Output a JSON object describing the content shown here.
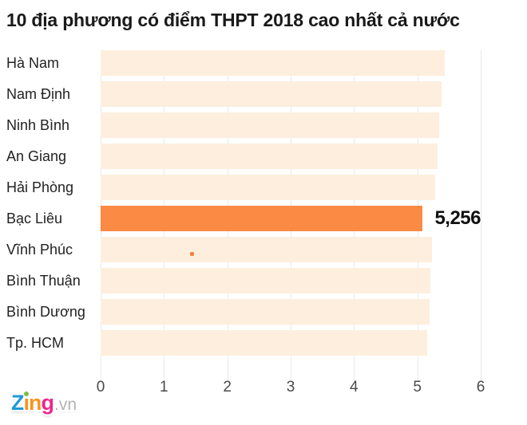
{
  "title": "10 địa phương có điểm THPT 2018 cao nhất cả nước",
  "chart_data": {
    "type": "bar",
    "orientation": "horizontal",
    "title": "10 địa phương có điểm THPT 2018 cao nhất cả nước",
    "categories": [
      "Hà Nam",
      "Nam Định",
      "Ninh Bình",
      "An Giang",
      "Hải Phòng",
      "Bạc Liêu",
      "Vĩnh Phúc",
      "Bình Thuận",
      "Bình Dương",
      "Tp. HCM"
    ],
    "values": [
      5.43,
      5.38,
      5.35,
      5.32,
      5.28,
      5.256,
      5.23,
      5.21,
      5.19,
      5.16
    ],
    "xlim": [
      0,
      6
    ],
    "xticks": [
      "0",
      "1",
      "2",
      "3",
      "4",
      "5",
      "6"
    ],
    "xlabel": "",
    "ylabel": "",
    "grid": "vertical",
    "legend": "none",
    "highlight": {
      "category": "Bạc Liêu",
      "index": 5,
      "value_label": "5,256"
    },
    "colors": {
      "bar": "#fdeedd",
      "highlight_bar": "#fb8a44",
      "gridline": "#e8e8e8",
      "value_text": "#111111"
    }
  },
  "bars": [
    {
      "label": "Hà Nam",
      "value": 5.43,
      "highlighted": false,
      "value_label": ""
    },
    {
      "label": "Nam Định",
      "value": 5.38,
      "highlighted": false,
      "value_label": ""
    },
    {
      "label": "Ninh Bình",
      "value": 5.35,
      "highlighted": false,
      "value_label": ""
    },
    {
      "label": "An Giang",
      "value": 5.32,
      "highlighted": false,
      "value_label": ""
    },
    {
      "label": "Hải Phòng",
      "value": 5.28,
      "highlighted": false,
      "value_label": ""
    },
    {
      "label": "Bạc Liêu",
      "value": 5.256,
      "highlighted": true,
      "value_label": "5,256"
    },
    {
      "label": "Vĩnh Phúc",
      "value": 5.23,
      "highlighted": false,
      "value_label": ""
    },
    {
      "label": "Bình Thuận",
      "value": 5.21,
      "highlighted": false,
      "value_label": ""
    },
    {
      "label": "Bình Dương",
      "value": 5.19,
      "highlighted": false,
      "value_label": ""
    },
    {
      "label": "Tp. HCM",
      "value": 5.16,
      "highlighted": false,
      "value_label": ""
    }
  ],
  "logo": {
    "name": "Zing.vn",
    "letters": [
      {
        "ch": "Z",
        "color": "#1f9ad7"
      },
      {
        "ch": "ı",
        "color": "#f7941e",
        "tittle": "#7ac143"
      },
      {
        "ch": "n",
        "color": "#f7941e"
      },
      {
        "ch": "g",
        "color": "#ec268f"
      }
    ],
    "suffix": ".vn"
  }
}
